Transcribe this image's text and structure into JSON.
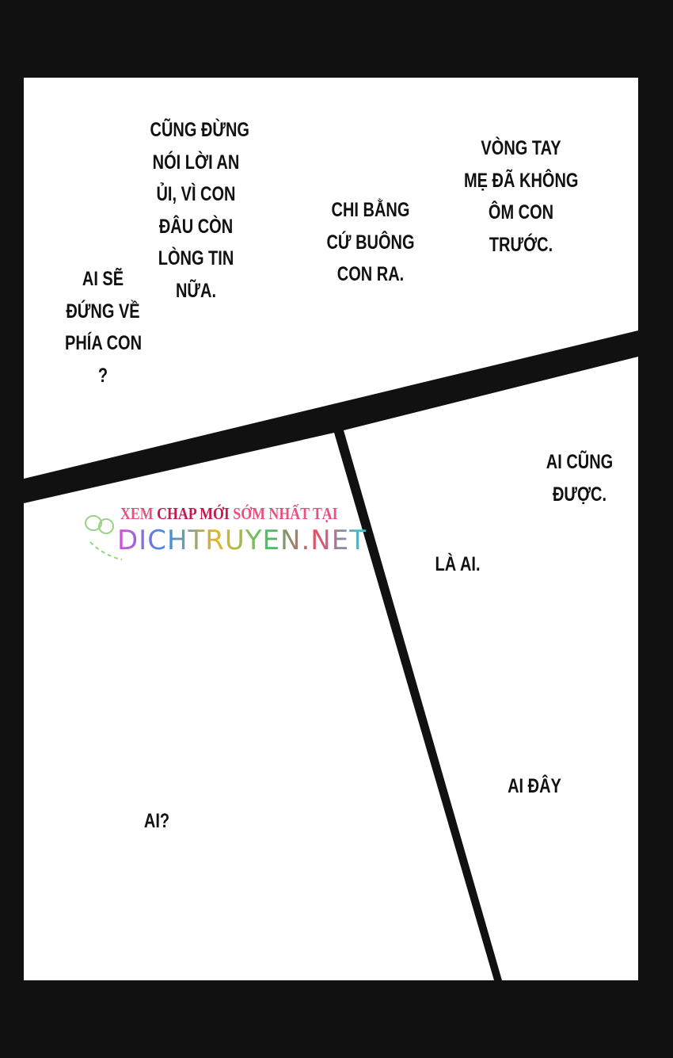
{
  "colors": {
    "background": "#111111",
    "panel": "#ffffff",
    "text": "#111111",
    "watermark_pink": "#e8507f"
  },
  "panels": {
    "top": {
      "bubbles": [
        {
          "lines": [
            "AI SẼ",
            "ĐỨNG VỀ",
            "PHÍA CON",
            "?"
          ]
        },
        {
          "lines": [
            "CŨNG ĐỪNG",
            "NÓI LỜI AN",
            "ỦI, VÌ CON",
            "ĐÂU CÒN",
            "LÒNG TIN",
            "NỮA."
          ]
        },
        {
          "lines": [
            "CHI BẰNG",
            "CỨ BUÔNG",
            "CON RA."
          ]
        },
        {
          "lines": [
            "VÒNG TAY",
            "MẸ ĐÃ KHÔNG",
            "ÔM CON",
            "TRƯỚC."
          ]
        }
      ]
    },
    "bottom_left": {
      "bubbles": [
        {
          "lines": [
            "AI?"
          ]
        }
      ]
    },
    "bottom_right": {
      "bubbles": [
        {
          "lines": [
            "AI CŨNG",
            "ĐƯỢC."
          ]
        },
        {
          "lines": [
            "LÀ AI."
          ]
        },
        {
          "lines": [
            "AI ĐÂY"
          ]
        }
      ]
    }
  },
  "watermark": {
    "tagline_pre": "XEM ",
    "tagline_hl": "CHAP MỚI",
    "tagline_post": " SỚM NHẤT TẠI",
    "site": "DICHTRUYEN.NET"
  }
}
